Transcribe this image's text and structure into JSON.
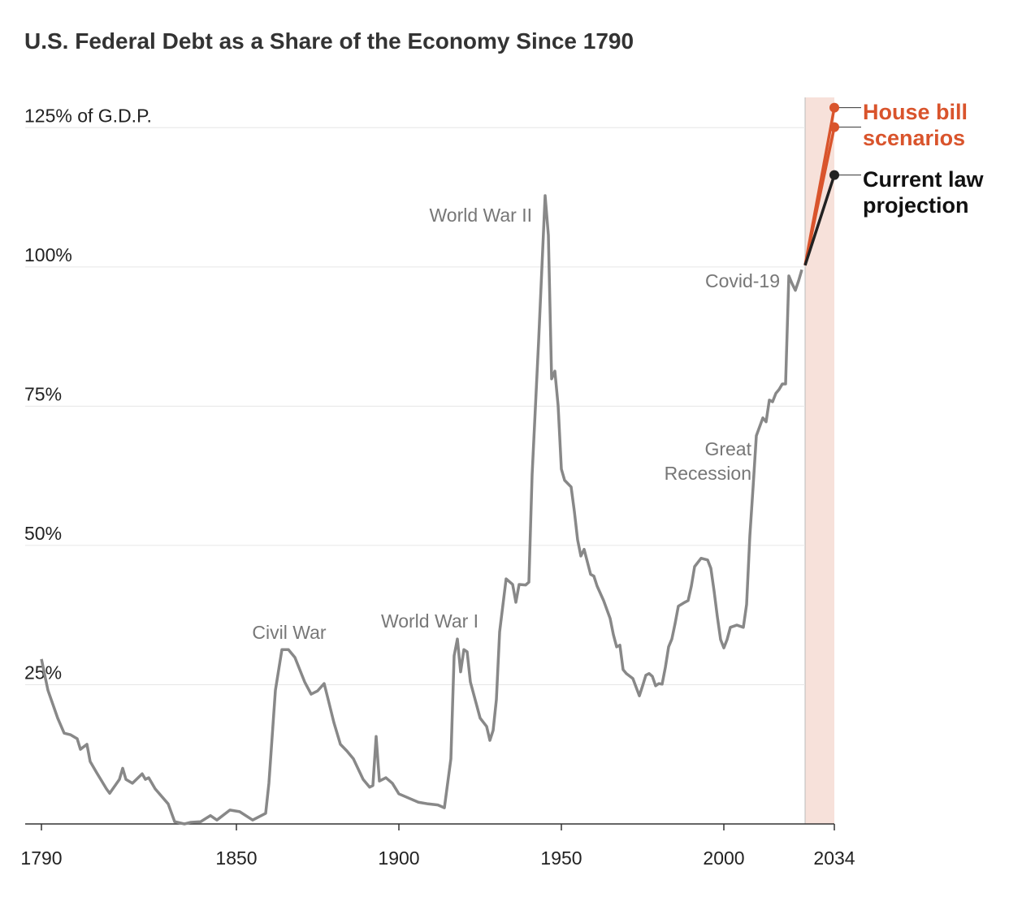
{
  "chart_data": {
    "type": "line",
    "title": "U.S. Federal Debt as a Share of the Economy Since 1790",
    "x": [
      1790,
      1792,
      1795,
      1797,
      1799,
      1801,
      1802,
      1804,
      1805,
      1807,
      1810,
      1811,
      1814,
      1815,
      1816,
      1818,
      1821,
      1822,
      1823,
      1825,
      1829,
      1831,
      1834,
      1836,
      1839,
      1842,
      1844,
      1848,
      1851,
      1855,
      1859,
      1860,
      1862,
      1864,
      1866,
      1868,
      1871,
      1873,
      1875,
      1877,
      1878,
      1880,
      1882,
      1884,
      1886,
      1889,
      1891,
      1892,
      1893,
      1894,
      1896,
      1898,
      1900,
      1904,
      1906,
      1909,
      1912,
      1914,
      1916,
      1917,
      1918,
      1919,
      1920,
      1921,
      1922,
      1925,
      1927,
      1928,
      1929,
      1930,
      1931,
      1933,
      1935,
      1936,
      1937,
      1939,
      1940,
      1941,
      1943,
      1945,
      1946,
      1947,
      1948,
      1949,
      1950,
      1951,
      1953,
      1954,
      1955,
      1956,
      1957,
      1959,
      1960,
      1961,
      1963,
      1965,
      1966,
      1967,
      1968,
      1969,
      1970,
      1972,
      1974,
      1975,
      1976,
      1977,
      1978,
      1979,
      1980,
      1981,
      1982,
      1983,
      1984,
      1985,
      1986,
      1988,
      1989,
      1990,
      1991,
      1993,
      1995,
      1996,
      1997,
      1998,
      1999,
      2000,
      2001,
      2002,
      2004,
      2006,
      2007,
      2008,
      2009,
      2010,
      2012,
      2013,
      2014,
      2015,
      2016,
      2017,
      2018,
      2019,
      2020,
      2021,
      2022,
      2023,
      2024
    ],
    "values": [
      29.6,
      24,
      19,
      16.3,
      16,
      15.3,
      13.4,
      14.3,
      11.2,
      9.2,
      6.3,
      5.5,
      8,
      10,
      8,
      7.3,
      9,
      8,
      8.3,
      6.3,
      3.6,
      0.4,
      0,
      0.3,
      0.4,
      1.5,
      0.7,
      2.5,
      2.2,
      0.7,
      1.9,
      7.3,
      24,
      31.3,
      31.3,
      29.9,
      25.5,
      23.3,
      23.9,
      25.2,
      22.9,
      18.2,
      14.3,
      13.1,
      11.7,
      8,
      6.6,
      6.9,
      15.7,
      7.7,
      8.3,
      7.3,
      5.4,
      4.4,
      3.9,
      3.6,
      3.4,
      2.9,
      11.7,
      30.2,
      33.2,
      27.3,
      31.3,
      30.9,
      25.5,
      19,
      17.5,
      15,
      16.8,
      22.3,
      34.5,
      44,
      43,
      39.8,
      43,
      42.9,
      43.4,
      62.7,
      86.7,
      112.8,
      105.7,
      79.9,
      81.3,
      75.1,
      63.7,
      61.7,
      60.5,
      56.1,
      51,
      48.1,
      49.3,
      44.8,
      44.5,
      42.7,
      40.1,
      36.9,
      34,
      31.8,
      32.1,
      27.7,
      27,
      26.1,
      23,
      24.8,
      26.7,
      27,
      26.5,
      24.8,
      25.2,
      25.1,
      28.1,
      31.8,
      33.2,
      36,
      39.1,
      39.8,
      40.1,
      42.7,
      46.2,
      47.7,
      47.4,
      45.9,
      41.8,
      37.2,
      33.1,
      31.6,
      33.1,
      35.3,
      35.7,
      35.3,
      39.4,
      51.7,
      60.5,
      69.7,
      72.9,
      72.2,
      76.1,
      75.8,
      77.3,
      78,
      79,
      79,
      98.4,
      97,
      95.8,
      97.5,
      99.5
    ],
    "color": "#888888",
    "projections": [
      {
        "x": [
          2025,
          2034
        ],
        "values": [
          100.3,
          128.6
        ],
        "color": "#d9542c"
      },
      {
        "x": [
          2025,
          2034
        ],
        "values": [
          100.3,
          125.1
        ],
        "color": "#d9542c"
      },
      {
        "x": [
          2025,
          2034
        ],
        "values": [
          100.3,
          116.5
        ],
        "color": "#222222"
      }
    ],
    "projection_labels": [
      {
        "lines": [
          "House bill",
          "scenarios"
        ],
        "color": "#d9542c"
      },
      {
        "lines": [
          "Current law",
          "projection"
        ],
        "color": "#111111"
      }
    ],
    "shaded_range": [
      2025,
      2034
    ],
    "shade_color": "#f7e1da",
    "annotations": [
      {
        "lines": [
          "World War II"
        ]
      },
      {
        "lines": [
          "Civil War"
        ]
      },
      {
        "lines": [
          "World War I"
        ]
      },
      {
        "lines": [
          "Covid-19"
        ]
      },
      {
        "lines": [
          "Great",
          "Recession"
        ]
      }
    ],
    "xlim": [
      1785,
      2034
    ],
    "xticks": [
      1790,
      1850,
      1900,
      1950,
      2000,
      2034
    ],
    "ylim": [
      0,
      130
    ],
    "yticks": [
      {
        "value": 25,
        "label": "25%"
      },
      {
        "value": 50,
        "label": "50%"
      },
      {
        "value": 75,
        "label": "75%"
      },
      {
        "value": 100,
        "label": "100%"
      },
      {
        "value": 125,
        "label": "125% of G.D.P."
      }
    ],
    "grid": true
  }
}
